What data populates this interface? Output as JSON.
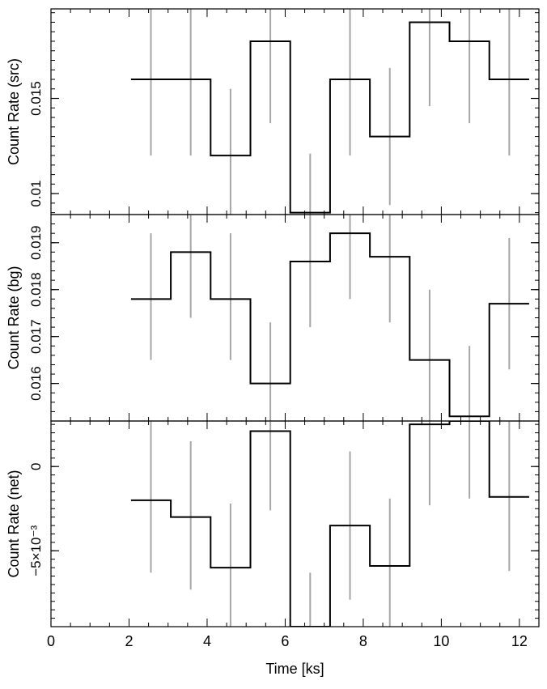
{
  "chart_data": {
    "type": "line",
    "title": "",
    "xlabel": "Time [ks]",
    "x_range": [
      0,
      12.5
    ],
    "x_ticks": [
      0,
      2,
      4,
      6,
      8,
      10,
      12
    ],
    "x_tick_labels": [
      "0",
      "2",
      "4",
      "6",
      "8",
      "10",
      "12"
    ],
    "bin_edges": [
      2.05,
      3.07,
      4.09,
      5.11,
      6.13,
      7.15,
      8.17,
      9.19,
      10.21,
      11.23,
      12.25
    ],
    "bin_centers": [
      2.56,
      3.58,
      4.6,
      5.62,
      6.64,
      7.66,
      8.68,
      9.7,
      10.72,
      11.74
    ],
    "step_color": "#000000",
    "errorbar_color": "#a6a6a6",
    "panels": [
      {
        "ylabel": "Count Rate (src)",
        "y_range": [
          0.0089,
          0.0197
        ],
        "y_ticks": [
          0.01,
          0.015
        ],
        "y_tick_labels": [
          "0.01",
          "0.015"
        ],
        "values": [
          0.016,
          0.016,
          0.012,
          0.018,
          0.009,
          0.016,
          0.013,
          0.019,
          0.018,
          0.016
        ],
        "err_low": [
          0.012,
          0.012,
          0.0089,
          0.0137,
          0.0089,
          0.012,
          0.0094,
          0.0146,
          0.0137,
          0.012
        ],
        "err_high": [
          0.0197,
          0.0197,
          0.0155,
          0.0197,
          0.0121,
          0.0197,
          0.0166,
          0.0197,
          0.0197,
          0.0197
        ]
      },
      {
        "ylabel": "Count Rate (bg)",
        "y_range": [
          0.0152,
          0.0196
        ],
        "y_ticks": [
          0.016,
          0.017,
          0.018,
          0.019
        ],
        "y_tick_labels": [
          "0.016",
          "0.017",
          "0.018",
          "0.019"
        ],
        "values": [
          0.0178,
          0.0188,
          0.0178,
          0.016,
          0.0186,
          0.0192,
          0.0187,
          0.0165,
          0.0153,
          0.0177
        ],
        "err_low": [
          0.0165,
          0.0174,
          0.0165,
          0.0152,
          0.0172,
          0.0178,
          0.0173,
          0.0152,
          0.0152,
          0.0163
        ],
        "err_high": [
          0.0192,
          0.0196,
          0.0192,
          0.0173,
          0.0196,
          0.0196,
          0.0196,
          0.018,
          0.0168,
          0.0191
        ]
      },
      {
        "ylabel": "Count Rate (net)",
        "y_range": [
          -0.0095,
          0.0027
        ],
        "y_ticks": [
          0.0,
          -0.005
        ],
        "y_tick_labels": [
          "0",
          "−5×10⁻³"
        ],
        "values": [
          -0.002,
          -0.003,
          -0.006,
          0.0021,
          -0.0095,
          -0.0035,
          -0.0059,
          0.0025,
          0.0027,
          -0.0018
        ],
        "err_low": [
          -0.0063,
          -0.0073,
          -0.0095,
          -0.0026,
          -0.0095,
          -0.0079,
          -0.0095,
          -0.0023,
          -0.0019,
          -0.0062
        ],
        "err_high": [
          0.0027,
          0.0015,
          -0.0022,
          0.0027,
          -0.0063,
          0.0009,
          -0.0019,
          0.0027,
          0.0027,
          0.0027
        ]
      }
    ]
  }
}
